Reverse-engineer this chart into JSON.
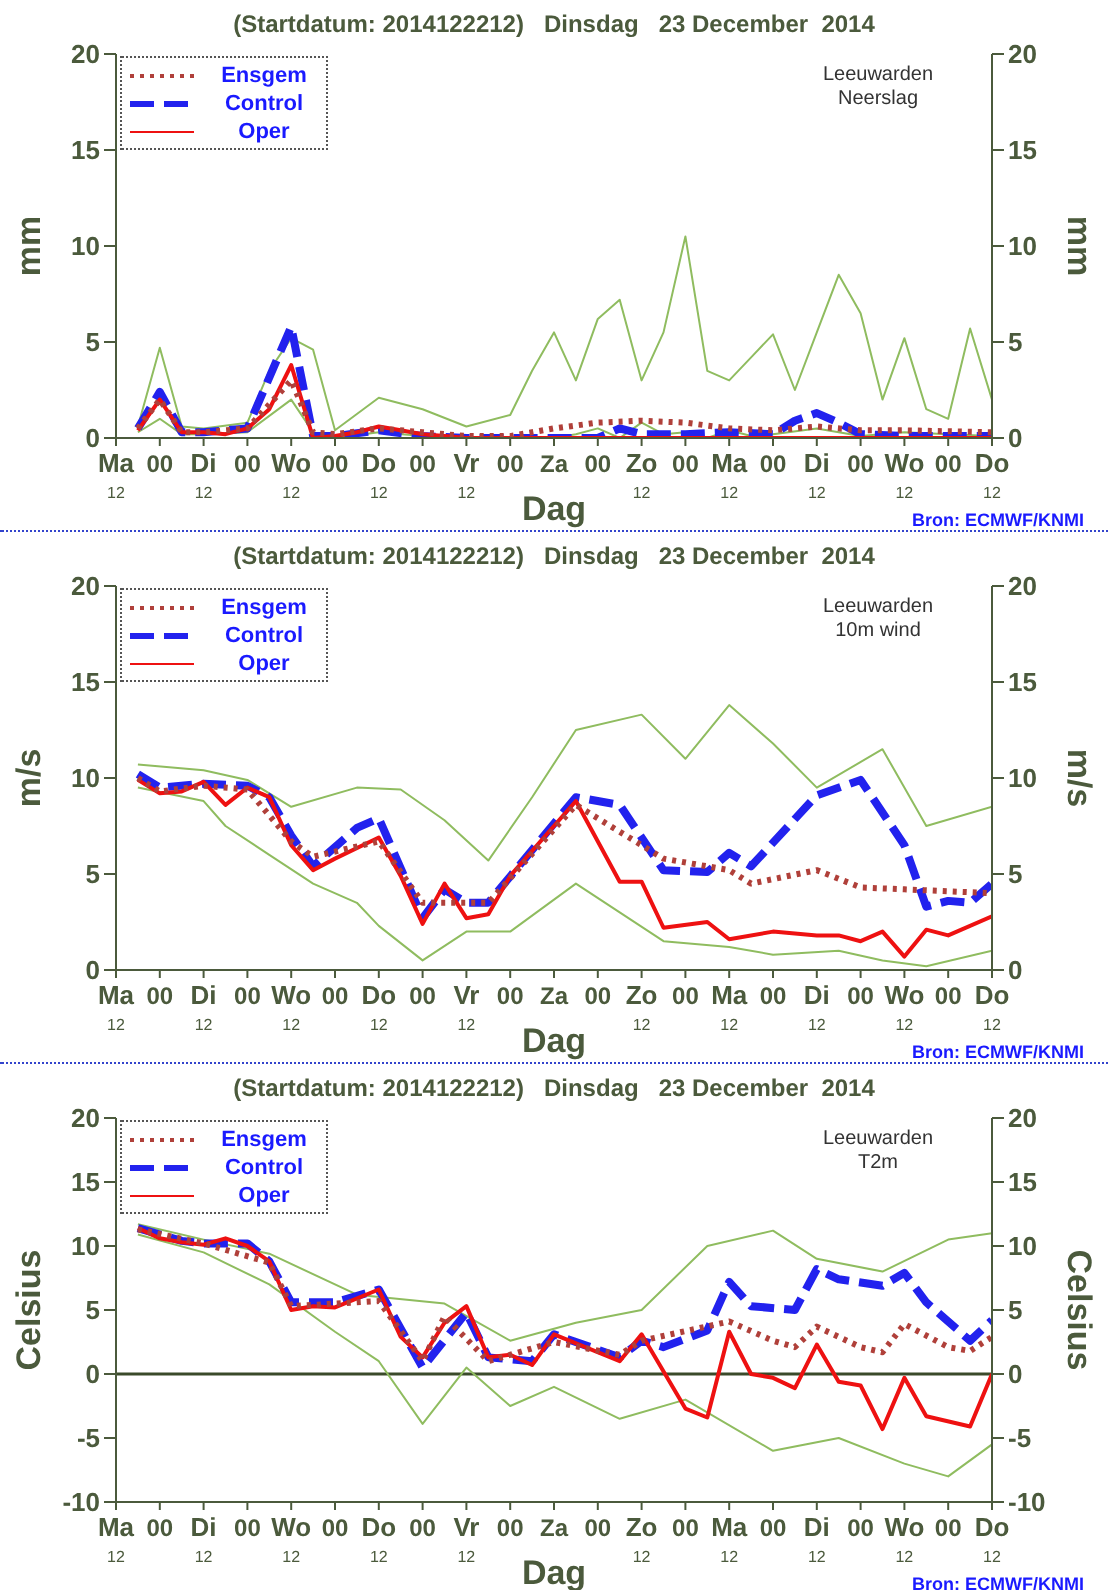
{
  "chart_data": [
    {
      "type": "line",
      "title": "(Startdatum: 2014122212)   Dinsdag   23 December  2014",
      "xlabel": "Dag",
      "ylabel": "mm",
      "y2label": "mm",
      "annotations": [
        "Leeuwarden\nNeerslag",
        "Bron: ECMWF/KNMI"
      ],
      "legend": "top left",
      "xlim": [
        "2014-12-22T12:00",
        "2015-01-01T12:00"
      ],
      "xticks": [
        {
          "value": "2014-12-22T12:00",
          "label": "Ma\n12"
        },
        {
          "value": "2014-12-23T00:00",
          "label": "00"
        },
        {
          "value": "2014-12-23T12:00",
          "label": "Di\n12"
        },
        {
          "value": "2014-12-24T00:00",
          "label": "00"
        },
        {
          "value": "2014-12-24T12:00",
          "label": "Wo\n12"
        },
        {
          "value": "2014-12-25T00:00",
          "label": "00"
        },
        {
          "value": "2014-12-25T12:00",
          "label": "Do\n12"
        },
        {
          "value": "2014-12-26T00:00",
          "label": "00"
        },
        {
          "value": "2014-12-26T12:00",
          "label": "Vr\n12"
        },
        {
          "value": "2014-12-27T00:00",
          "label": "00"
        },
        {
          "value": "2014-12-27T12:00",
          "label": "Za"
        },
        {
          "value": "2014-12-28T00:00",
          "label": "00"
        },
        {
          "value": "2014-12-28T12:00",
          "label": "Zo\n12"
        },
        {
          "value": "2014-12-29T00:00",
          "label": "00"
        },
        {
          "value": "2014-12-29T12:00",
          "label": "Ma\n12"
        },
        {
          "value": "2014-12-30T00:00",
          "label": "00"
        },
        {
          "value": "2014-12-30T12:00",
          "label": "Di\n12"
        },
        {
          "value": "2014-12-31T00:00",
          "label": "00"
        },
        {
          "value": "2014-12-31T12:00",
          "label": "Wo\n12"
        },
        {
          "value": "2015-01-01T00:00",
          "label": "00"
        },
        {
          "value": "2015-01-01T12:00",
          "label": "Do\n12"
        }
      ],
      "ylim": [
        0,
        20
      ],
      "yticks": [
        0,
        5,
        10,
        15,
        20
      ],
      "y2lim": [
        0,
        20
      ],
      "y2ticks": [
        0,
        5,
        10,
        15,
        20
      ],
      "series": [
        {
          "color": "#8fbc5f",
          "line_style": "solid",
          "x": [
            "2014-12-22T18:00",
            "2014-12-23T00:00",
            "2014-12-23T06:00",
            "2014-12-23T12:00",
            "2014-12-24T00:00",
            "2014-12-24T06:00",
            "2014-12-24T12:00",
            "2014-12-24T18:00",
            "2014-12-25T00:00",
            "2014-12-25T12:00",
            "2014-12-26T00:00",
            "2014-12-26T12:00",
            "2014-12-27T00:00",
            "2014-12-27T06:00",
            "2014-12-27T12:00",
            "2014-12-27T18:00",
            "2014-12-28T00:00",
            "2014-12-28T06:00",
            "2014-12-28T12:00",
            "2014-12-28T18:00",
            "2014-12-29T00:00",
            "2014-12-29T06:00",
            "2014-12-29T12:00",
            "2014-12-29T18:00",
            "2014-12-30T00:00",
            "2014-12-30T06:00",
            "2014-12-30T12:00",
            "2014-12-30T18:00",
            "2014-12-31T00:00",
            "2014-12-31T06:00",
            "2014-12-31T12:00",
            "2014-12-31T18:00",
            "2015-01-01T00:00",
            "2015-01-01T06:00",
            "2015-01-01T12:00"
          ],
          "values": [
            0.6,
            4.7,
            0.6,
            0.5,
            0.8,
            3.5,
            5.2,
            4.6,
            0.4,
            2.1,
            1.5,
            0.6,
            1.2,
            3.5,
            5.5,
            3.0,
            6.2,
            7.2,
            3.0,
            5.5,
            10.5,
            3.5,
            3.0,
            4.2,
            5.4,
            2.5,
            5.5,
            8.5,
            6.5,
            2.0,
            5.2,
            1.5,
            1.0,
            5.7,
            2.0
          ]
        },
        {
          "color": "#8fbc5f",
          "line_style": "solid",
          "x": [
            "2014-12-22T18:00",
            "2014-12-23T00:00",
            "2014-12-23T06:00",
            "2014-12-23T12:00",
            "2014-12-24T00:00",
            "2014-12-24T12:00",
            "2014-12-24T18:00",
            "2014-12-25T00:00",
            "2014-12-25T12:00",
            "2014-12-26T00:00",
            "2014-12-26T12:00",
            "2014-12-27T00:00",
            "2014-12-27T12:00",
            "2014-12-27T18:00",
            "2014-12-28T00:00",
            "2014-12-28T06:00",
            "2014-12-28T12:00",
            "2014-12-28T18:00",
            "2014-12-29T00:00",
            "2014-12-29T06:00",
            "2014-12-29T12:00",
            "2014-12-29T18:00",
            "2014-12-30T00:00",
            "2014-12-30T12:00",
            "2014-12-31T00:00",
            "2014-12-31T12:00",
            "2015-01-01T00:00",
            "2015-01-01T12:00"
          ],
          "values": [
            0.3,
            1.0,
            0.2,
            0.2,
            0.3,
            2.0,
            0.3,
            0.0,
            0.3,
            0.1,
            0.0,
            0.0,
            0.0,
            0.2,
            0.5,
            0.0,
            0.8,
            0.2,
            0.3,
            0.0,
            0.4,
            0.1,
            0.2,
            0.5,
            0.1,
            0.3,
            0.2,
            0.1
          ]
        },
        {
          "name": "Ensgem",
          "color": "#b0403a",
          "line_style": "dotted",
          "x": [
            "2014-12-22T18:00",
            "2014-12-23T00:00",
            "2014-12-23T06:00",
            "2014-12-23T12:00",
            "2014-12-24T00:00",
            "2014-12-24T12:00",
            "2014-12-24T18:00",
            "2014-12-25T00:00",
            "2014-12-25T12:00",
            "2014-12-26T00:00",
            "2014-12-26T12:00",
            "2014-12-27T00:00",
            "2014-12-27T12:00",
            "2014-12-28T00:00",
            "2014-12-28T12:00",
            "2014-12-29T00:00",
            "2014-12-29T12:00",
            "2014-12-30T00:00",
            "2014-12-30T12:00",
            "2014-12-31T00:00",
            "2014-12-31T12:00",
            "2015-01-01T12:00"
          ],
          "values": [
            0.5,
            2.0,
            0.3,
            0.3,
            0.5,
            3.0,
            0.3,
            0.2,
            0.5,
            0.3,
            0.1,
            0.1,
            0.5,
            0.8,
            0.9,
            0.8,
            0.5,
            0.4,
            0.6,
            0.4,
            0.4,
            0.3
          ]
        },
        {
          "name": "Control",
          "color": "#2222ee",
          "line_style": "dashed",
          "x": [
            "2014-12-22T18:00",
            "2014-12-23T00:00",
            "2014-12-23T06:00",
            "2014-12-23T12:00",
            "2014-12-24T00:00",
            "2014-12-24T12:00",
            "2014-12-24T18:00",
            "2014-12-25T00:00",
            "2014-12-25T12:00",
            "2014-12-26T00:00",
            "2014-12-26T12:00",
            "2014-12-27T00:00",
            "2014-12-27T12:00",
            "2014-12-28T00:00",
            "2014-12-28T06:00",
            "2014-12-28T12:00",
            "2014-12-29T00:00",
            "2014-12-29T12:00",
            "2014-12-30T00:00",
            "2014-12-30T06:00",
            "2014-12-30T12:00",
            "2014-12-30T18:00",
            "2014-12-31T00:00",
            "2014-12-31T12:00",
            "2015-01-01T12:00"
          ],
          "values": [
            0.5,
            2.4,
            0.3,
            0.3,
            0.5,
            5.8,
            0.1,
            0.1,
            0.4,
            0.1,
            0.0,
            0.0,
            0.0,
            0.0,
            0.5,
            0.2,
            0.2,
            0.3,
            0.2,
            0.9,
            1.3,
            0.8,
            0.2,
            0.1,
            0.1
          ]
        },
        {
          "name": "Oper",
          "color": "#ee1111",
          "line_style": "solid",
          "x": [
            "2014-12-22T18:00",
            "2014-12-23T00:00",
            "2014-12-23T06:00",
            "2014-12-23T12:00",
            "2014-12-23T18:00",
            "2014-12-24T00:00",
            "2014-12-24T06:00",
            "2014-12-24T12:00",
            "2014-12-24T18:00",
            "2014-12-25T00:00",
            "2014-12-25T06:00",
            "2014-12-25T12:00",
            "2014-12-25T18:00",
            "2014-12-26T00:00",
            "2014-12-26T06:00",
            "2014-12-26T12:00",
            "2014-12-27T12:00",
            "2014-12-29T12:00",
            "2015-01-01T12:00"
          ],
          "values": [
            0.4,
            2.0,
            0.3,
            0.3,
            0.2,
            0.5,
            1.5,
            3.8,
            0.0,
            0.1,
            0.3,
            0.6,
            0.4,
            0.2,
            0.1,
            0.0,
            0.0,
            0.0,
            0.0
          ]
        }
      ]
    },
    {
      "type": "line",
      "title": "(Startdatum: 2014122212)   Dinsdag   23 December  2014",
      "xlabel": "Dag",
      "ylabel": "m/s",
      "y2label": "m/s",
      "annotations": [
        "Leeuwarden\n10m wind",
        "Bron: ECMWF/KNMI"
      ],
      "legend": "top left",
      "xlim": [
        "2014-12-22T12:00",
        "2015-01-01T12:00"
      ],
      "xticks": [
        {
          "value": "2014-12-22T12:00",
          "label": "Ma\n12"
        },
        {
          "value": "2014-12-23T00:00",
          "label": "00"
        },
        {
          "value": "2014-12-23T12:00",
          "label": "Di\n12"
        },
        {
          "value": "2014-12-24T00:00",
          "label": "00"
        },
        {
          "value": "2014-12-24T12:00",
          "label": "Wo\n12"
        },
        {
          "value": "2014-12-25T00:00",
          "label": "00"
        },
        {
          "value": "2014-12-25T12:00",
          "label": "Do\n12"
        },
        {
          "value": "2014-12-26T00:00",
          "label": "00"
        },
        {
          "value": "2014-12-26T12:00",
          "label": "Vr\n12"
        },
        {
          "value": "2014-12-27T00:00",
          "label": "00"
        },
        {
          "value": "2014-12-27T12:00",
          "label": "Za"
        },
        {
          "value": "2014-12-28T00:00",
          "label": "00"
        },
        {
          "value": "2014-12-28T12:00",
          "label": "Zo\n12"
        },
        {
          "value": "2014-12-29T00:00",
          "label": "00"
        },
        {
          "value": "2014-12-29T12:00",
          "label": "Ma\n12"
        },
        {
          "value": "2014-12-30T00:00",
          "label": "00"
        },
        {
          "value": "2014-12-30T12:00",
          "label": "Di\n12"
        },
        {
          "value": "2014-12-31T00:00",
          "label": "00"
        },
        {
          "value": "2014-12-31T12:00",
          "label": "Wo\n12"
        },
        {
          "value": "2015-01-01T00:00",
          "label": "00"
        },
        {
          "value": "2015-01-01T12:00",
          "label": "Do\n12"
        }
      ],
      "ylim": [
        0,
        20
      ],
      "yticks": [
        0,
        5,
        10,
        15,
        20
      ],
      "y2lim": [
        0,
        20
      ],
      "y2ticks": [
        0,
        5,
        10,
        15,
        20
      ],
      "series": [
        {
          "color": "#8fbc5f",
          "line_style": "solid",
          "x": [
            "2014-12-22T18:00",
            "2014-12-23T12:00",
            "2014-12-24T00:00",
            "2014-12-24T12:00",
            "2014-12-25T06:00",
            "2014-12-25T18:00",
            "2014-12-26T06:00",
            "2014-12-26T18:00",
            "2014-12-27T06:00",
            "2014-12-27T18:00",
            "2014-12-28T12:00",
            "2014-12-29T00:00",
            "2014-12-29T12:00",
            "2014-12-30T00:00",
            "2014-12-30T12:00",
            "2014-12-31T06:00",
            "2014-12-31T18:00",
            "2015-01-01T12:00"
          ],
          "values": [
            10.7,
            10.4,
            9.9,
            8.5,
            9.5,
            9.4,
            7.8,
            5.7,
            9.0,
            12.5,
            13.3,
            11.0,
            13.8,
            11.8,
            9.5,
            11.5,
            7.5,
            8.5
          ]
        },
        {
          "color": "#8fbc5f",
          "line_style": "solid",
          "x": [
            "2014-12-22T18:00",
            "2014-12-23T12:00",
            "2014-12-23T18:00",
            "2014-12-24T06:00",
            "2014-12-24T18:00",
            "2014-12-25T06:00",
            "2014-12-25T12:00",
            "2014-12-26T00:00",
            "2014-12-26T12:00",
            "2014-12-27T00:00",
            "2014-12-27T18:00",
            "2014-12-28T06:00",
            "2014-12-28T18:00",
            "2014-12-29T12:00",
            "2014-12-30T00:00",
            "2014-12-30T18:00",
            "2014-12-31T06:00",
            "2014-12-31T18:00",
            "2015-01-01T12:00"
          ],
          "values": [
            9.5,
            8.8,
            7.5,
            6.0,
            4.5,
            3.5,
            2.3,
            0.5,
            2.0,
            2.0,
            4.5,
            3.0,
            1.5,
            1.2,
            0.8,
            1.0,
            0.5,
            0.2,
            1.0
          ]
        },
        {
          "name": "Ensgem",
          "color": "#b0403a",
          "line_style": "dotted",
          "x": [
            "2014-12-22T18:00",
            "2014-12-23T00:00",
            "2014-12-23T12:00",
            "2014-12-24T00:00",
            "2014-12-24T12:00",
            "2014-12-24T18:00",
            "2014-12-25T12:00",
            "2014-12-26T00:00",
            "2014-12-26T12:00",
            "2014-12-26T18:00",
            "2014-12-27T18:00",
            "2014-12-28T18:00",
            "2014-12-29T12:00",
            "2014-12-29T18:00",
            "2014-12-30T12:00",
            "2014-12-31T00:00",
            "2014-12-31T12:00",
            "2015-01-01T12:00"
          ],
          "values": [
            10.0,
            9.3,
            9.6,
            9.4,
            6.7,
            5.9,
            6.7,
            3.5,
            3.5,
            3.5,
            8.6,
            5.8,
            5.2,
            4.5,
            5.2,
            4.3,
            4.2,
            4.0
          ]
        },
        {
          "name": "Control",
          "color": "#2222ee",
          "line_style": "dashed",
          "x": [
            "2014-12-22T18:00",
            "2014-12-23T00:00",
            "2014-12-23T12:00",
            "2014-12-24T00:00",
            "2014-12-24T06:00",
            "2014-12-24T12:00",
            "2014-12-24T18:00",
            "2014-12-25T06:00",
            "2014-12-25T12:00",
            "2014-12-26T00:00",
            "2014-12-26T06:00",
            "2014-12-26T12:00",
            "2014-12-26T18:00",
            "2014-12-27T18:00",
            "2014-12-28T06:00",
            "2014-12-28T18:00",
            "2014-12-29T06:00",
            "2014-12-29T12:00",
            "2014-12-29T18:00",
            "2014-12-30T12:00",
            "2014-12-31T00:00",
            "2014-12-31T12:00",
            "2014-12-31T18:00",
            "2015-01-01T00:00",
            "2015-01-01T06:00",
            "2015-01-01T12:00"
          ],
          "values": [
            10.2,
            9.5,
            9.7,
            9.6,
            9.0,
            7.0,
            5.4,
            7.4,
            7.9,
            2.7,
            4.2,
            3.5,
            3.5,
            9.0,
            8.6,
            5.2,
            5.1,
            6.1,
            5.4,
            9.1,
            9.9,
            6.5,
            3.3,
            3.6,
            3.5,
            4.5
          ]
        },
        {
          "name": "Oper",
          "color": "#ee1111",
          "line_style": "solid",
          "x": [
            "2014-12-22T18:00",
            "2014-12-23T00:00",
            "2014-12-23T06:00",
            "2014-12-23T12:00",
            "2014-12-23T18:00",
            "2014-12-24T00:00",
            "2014-12-24T06:00",
            "2014-12-24T12:00",
            "2014-12-24T18:00",
            "2014-12-25T00:00",
            "2014-12-25T12:00",
            "2014-12-25T18:00",
            "2014-12-26T00:00",
            "2014-12-26T06:00",
            "2014-12-26T12:00",
            "2014-12-26T18:00",
            "2014-12-27T00:00",
            "2014-12-27T18:00",
            "2014-12-28T06:00",
            "2014-12-28T12:00",
            "2014-12-28T18:00",
            "2014-12-29T06:00",
            "2014-12-29T12:00",
            "2014-12-30T00:00",
            "2014-12-30T12:00",
            "2014-12-30T18:00",
            "2014-12-31T00:00",
            "2014-12-31T06:00",
            "2014-12-31T12:00",
            "2014-12-31T18:00",
            "2015-01-01T00:00",
            "2015-01-01T12:00"
          ],
          "values": [
            9.9,
            9.2,
            9.3,
            9.8,
            8.6,
            9.5,
            9.0,
            6.5,
            5.2,
            5.8,
            6.9,
            4.9,
            2.4,
            4.5,
            2.7,
            2.9,
            4.9,
            8.8,
            4.6,
            4.6,
            2.2,
            2.5,
            1.6,
            2.0,
            1.8,
            1.8,
            1.5,
            2.0,
            0.7,
            2.1,
            1.8,
            2.8
          ]
        }
      ]
    },
    {
      "type": "line",
      "title": "(Startdatum: 2014122212)   Dinsdag   23 December  2014",
      "xlabel": "Dag",
      "ylabel": "Celsius",
      "y2label": "Celsius",
      "annotations": [
        "Leeuwarden\nT2m",
        "Bron: ECMWF/KNMI"
      ],
      "legend": "top left",
      "xlim": [
        "2014-12-22T12:00",
        "2015-01-01T12:00"
      ],
      "xticks": [
        {
          "value": "2014-12-22T12:00",
          "label": "Ma\n12"
        },
        {
          "value": "2014-12-23T00:00",
          "label": "00"
        },
        {
          "value": "2014-12-23T12:00",
          "label": "Di\n12"
        },
        {
          "value": "2014-12-24T00:00",
          "label": "00"
        },
        {
          "value": "2014-12-24T12:00",
          "label": "Wo\n12"
        },
        {
          "value": "2014-12-25T00:00",
          "label": "00"
        },
        {
          "value": "2014-12-25T12:00",
          "label": "Do\n12"
        },
        {
          "value": "2014-12-26T00:00",
          "label": "00"
        },
        {
          "value": "2014-12-26T12:00",
          "label": "Vr\n12"
        },
        {
          "value": "2014-12-27T00:00",
          "label": "00"
        },
        {
          "value": "2014-12-27T12:00",
          "label": "Za"
        },
        {
          "value": "2014-12-28T00:00",
          "label": "00"
        },
        {
          "value": "2014-12-28T12:00",
          "label": "Zo\n12"
        },
        {
          "value": "2014-12-29T00:00",
          "label": "00"
        },
        {
          "value": "2014-12-29T12:00",
          "label": "Ma\n12"
        },
        {
          "value": "2014-12-30T00:00",
          "label": "00"
        },
        {
          "value": "2014-12-30T12:00",
          "label": "Di\n12"
        },
        {
          "value": "2014-12-31T00:00",
          "label": "00"
        },
        {
          "value": "2014-12-31T12:00",
          "label": "Wo\n12"
        },
        {
          "value": "2015-01-01T00:00",
          "label": "00"
        },
        {
          "value": "2015-01-01T12:00",
          "label": "Do\n12"
        }
      ],
      "ylim": [
        -10,
        20
      ],
      "yticks": [
        -10,
        -5,
        0,
        5,
        10,
        15,
        20
      ],
      "y2lim": [
        -10,
        20
      ],
      "y2ticks": [
        -10,
        -5,
        0,
        5,
        10,
        15,
        20
      ],
      "ref_lines": [
        {
          "axis": "y",
          "value": 0,
          "color": "#3a4a2a"
        }
      ],
      "series": [
        {
          "color": "#8fbc5f",
          "line_style": "solid",
          "x": [
            "2014-12-22T18:00",
            "2014-12-23T12:00",
            "2014-12-24T06:00",
            "2014-12-25T06:00",
            "2014-12-26T06:00",
            "2014-12-27T00:00",
            "2014-12-27T18:00",
            "2014-12-28T12:00",
            "2014-12-29T06:00",
            "2014-12-30T00:00",
            "2014-12-30T12:00",
            "2014-12-31T06:00",
            "2015-01-01T00:00",
            "2015-01-01T12:00"
          ],
          "values": [
            11.7,
            10.5,
            9.4,
            6.2,
            5.5,
            2.6,
            4.0,
            5.0,
            10.0,
            11.2,
            9.0,
            8.0,
            10.5,
            11.0
          ]
        },
        {
          "color": "#8fbc5f",
          "line_style": "solid",
          "x": [
            "2014-12-22T18:00",
            "2014-12-23T12:00",
            "2014-12-24T06:00",
            "2014-12-25T00:00",
            "2014-12-25T12:00",
            "2014-12-26T00:00",
            "2014-12-26T12:00",
            "2014-12-27T00:00",
            "2014-12-27T12:00",
            "2014-12-28T06:00",
            "2014-12-29T00:00",
            "2014-12-30T00:00",
            "2014-12-30T18:00",
            "2014-12-31T12:00",
            "2015-01-01T00:00",
            "2015-01-01T12:00"
          ],
          "values": [
            10.9,
            9.5,
            7.0,
            3.3,
            1.0,
            -3.9,
            0.5,
            -2.5,
            -1.0,
            -3.5,
            -2.0,
            -6.0,
            -5.0,
            -7.0,
            -8.0,
            -5.5
          ]
        },
        {
          "name": "Ensgem",
          "color": "#b0403a",
          "line_style": "dotted",
          "x": [
            "2014-12-22T18:00",
            "2014-12-23T12:00",
            "2014-12-24T06:00",
            "2014-12-24T12:00",
            "2014-12-25T12:00",
            "2014-12-26T00:00",
            "2014-12-26T06:00",
            "2014-12-26T18:00",
            "2014-12-27T12:00",
            "2014-12-28T06:00",
            "2014-12-28T12:00",
            "2014-12-29T12:00",
            "2014-12-30T00:00",
            "2014-12-30T06:00",
            "2014-12-30T12:00",
            "2014-12-31T00:00",
            "2014-12-31T06:00",
            "2014-12-31T12:00",
            "2015-01-01T00:00",
            "2015-01-01T06:00",
            "2015-01-01T12:00"
          ],
          "values": [
            11.3,
            10.2,
            8.7,
            5.3,
            5.7,
            1.0,
            4.5,
            1.0,
            2.5,
            1.5,
            2.6,
            4.1,
            2.6,
            2.1,
            3.7,
            2.1,
            1.7,
            3.9,
            2.1,
            1.8,
            2.9
          ]
        },
        {
          "name": "Control",
          "color": "#2222ee",
          "line_style": "dashed",
          "x": [
            "2014-12-22T18:00",
            "2014-12-23T06:00",
            "2014-12-23T12:00",
            "2014-12-24T00:00",
            "2014-12-24T06:00",
            "2014-12-24T12:00",
            "2014-12-25T00:00",
            "2014-12-25T12:00",
            "2014-12-26T00:00",
            "2014-12-26T12:00",
            "2014-12-26T18:00",
            "2014-12-27T06:00",
            "2014-12-27T12:00",
            "2014-12-28T06:00",
            "2014-12-28T12:00",
            "2014-12-28T18:00",
            "2014-12-29T06:00",
            "2014-12-29T12:00",
            "2014-12-29T18:00",
            "2014-12-30T06:00",
            "2014-12-30T12:00",
            "2014-12-30T18:00",
            "2014-12-31T06:00",
            "2014-12-31T12:00",
            "2014-12-31T18:00",
            "2015-01-01T06:00",
            "2015-01-01T12:00"
          ],
          "values": [
            11.4,
            10.4,
            10.2,
            10.2,
            8.8,
            5.6,
            5.6,
            6.6,
            0.5,
            4.8,
            1.3,
            1.0,
            3.1,
            1.3,
            2.6,
            2.1,
            3.4,
            7.2,
            5.3,
            5.0,
            8.2,
            7.4,
            6.9,
            7.9,
            5.6,
            2.6,
            4.2
          ]
        },
        {
          "name": "Oper",
          "color": "#ee1111",
          "line_style": "solid",
          "x": [
            "2014-12-22T18:00",
            "2014-12-23T00:00",
            "2014-12-23T06:00",
            "2014-12-23T12:00",
            "2014-12-23T18:00",
            "2014-12-24T00:00",
            "2014-12-24T06:00",
            "2014-12-24T12:00",
            "2014-12-24T18:00",
            "2014-12-25T00:00",
            "2014-12-25T12:00",
            "2014-12-25T18:00",
            "2014-12-26T00:00",
            "2014-12-26T06:00",
            "2014-12-26T12:00",
            "2014-12-26T18:00",
            "2014-12-27T00:00",
            "2014-12-27T06:00",
            "2014-12-27T12:00",
            "2014-12-28T06:00",
            "2014-12-28T12:00",
            "2014-12-29T00:00",
            "2014-12-29T06:00",
            "2014-12-29T12:00",
            "2014-12-29T18:00",
            "2014-12-30T00:00",
            "2014-12-30T06:00",
            "2014-12-30T12:00",
            "2014-12-30T18:00",
            "2014-12-31T00:00",
            "2014-12-31T06:00",
            "2014-12-31T12:00",
            "2014-12-31T18:00",
            "2015-01-01T06:00",
            "2015-01-01T12:00"
          ],
          "values": [
            11.4,
            10.6,
            10.3,
            10.1,
            10.6,
            10.0,
            8.8,
            5.0,
            5.3,
            5.2,
            6.6,
            2.9,
            1.3,
            4.0,
            5.3,
            1.3,
            1.5,
            0.7,
            3.1,
            1.0,
            3.1,
            -2.7,
            -3.4,
            3.3,
            0.0,
            -0.3,
            -1.1,
            2.3,
            -0.6,
            -0.9,
            -4.3,
            -0.3,
            -3.3,
            -4.1,
            0.0
          ]
        }
      ]
    }
  ]
}
